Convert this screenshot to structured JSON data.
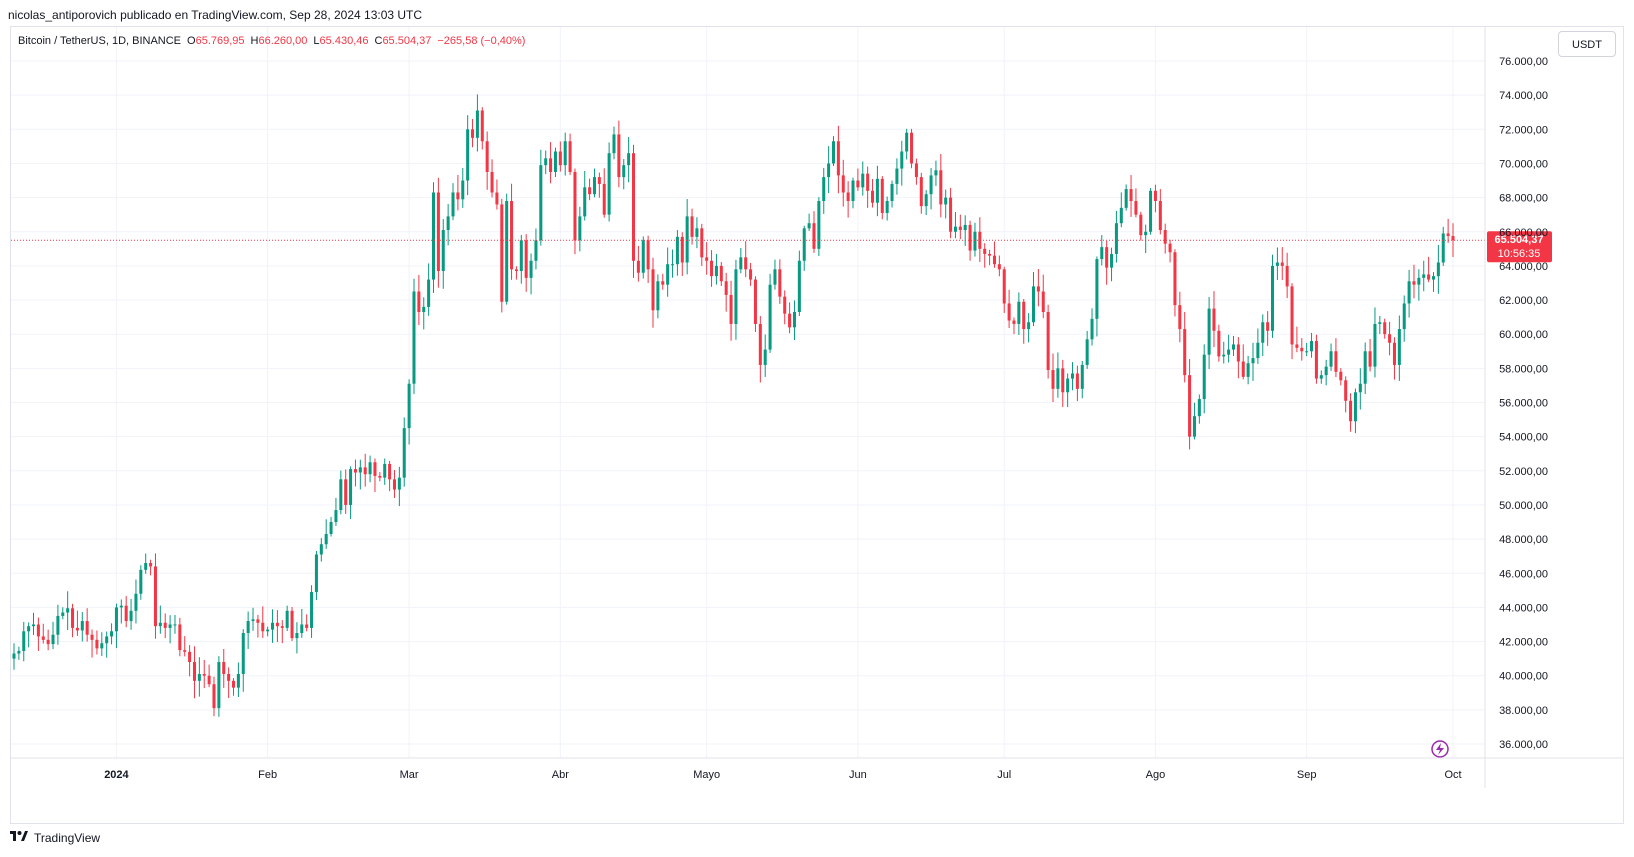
{
  "header": {
    "publisher_line": "nicolas_antiporovich publicado en TradingView.com, Sep 28, 2024 13:03 UTC"
  },
  "legend": {
    "symbol": "Bitcoin / TetherUS, 1D, BINANCE",
    "open_label": "O",
    "open_value": "65.769,95",
    "high_label": "H",
    "high_value": "66.260,00",
    "low_label": "L",
    "low_value": "65.430,46",
    "close_label": "C",
    "close_value": "65.504,37",
    "change": "−265,58 (−0,40%)"
  },
  "currency_button": "USDT",
  "last_price": {
    "label": "65.504,37",
    "countdown": "10:56:35",
    "value": 65504.37
  },
  "footer": {
    "brand": "TradingView"
  },
  "colors": {
    "up": "#089981",
    "down": "#f23645",
    "grid": "#f0f3fa",
    "axis_text": "#131722",
    "price_line": "#f23645"
  },
  "icons": {
    "replay": "lightning-icon",
    "logo": "tradingview-logo-icon"
  },
  "chart_data": {
    "type": "candlestick",
    "title": "Bitcoin / TetherUS, 1D, BINANCE",
    "grid": true,
    "ylim": [
      35000,
      77000
    ],
    "y_ticks": [
      {
        "value": 36000,
        "label": "36.000,00"
      },
      {
        "value": 38000,
        "label": "38.000,00"
      },
      {
        "value": 40000,
        "label": "40.000,00"
      },
      {
        "value": 42000,
        "label": "42.000,00"
      },
      {
        "value": 44000,
        "label": "44.000,00"
      },
      {
        "value": 46000,
        "label": "46.000,00"
      },
      {
        "value": 48000,
        "label": "48.000,00"
      },
      {
        "value": 50000,
        "label": "50.000,00"
      },
      {
        "value": 52000,
        "label": "52.000,00"
      },
      {
        "value": 54000,
        "label": "54.000,00"
      },
      {
        "value": 56000,
        "label": "56.000,00"
      },
      {
        "value": 58000,
        "label": "58.000,00"
      },
      {
        "value": 60000,
        "label": "60.000,00"
      },
      {
        "value": 62000,
        "label": "62.000,00"
      },
      {
        "value": 64000,
        "label": "64.000,00"
      },
      {
        "value": 66000,
        "label": "66.000,00"
      },
      {
        "value": 68000,
        "label": "68.000,00"
      },
      {
        "value": 70000,
        "label": "70.000,00"
      },
      {
        "value": 72000,
        "label": "72.000,00"
      },
      {
        "value": 74000,
        "label": "74.000,00"
      },
      {
        "value": 76000,
        "label": "76.000,00"
      }
    ],
    "x_ticks": [
      {
        "date": "2024-01-01",
        "label": "2024",
        "bold": true
      },
      {
        "date": "2024-02-01",
        "label": "Feb"
      },
      {
        "date": "2024-03-01",
        "label": "Mar"
      },
      {
        "date": "2024-04-01",
        "label": "Abr"
      },
      {
        "date": "2024-05-01",
        "label": "Mayo"
      },
      {
        "date": "2024-06-01",
        "label": "Jun"
      },
      {
        "date": "2024-07-01",
        "label": "Jul"
      },
      {
        "date": "2024-08-01",
        "label": "Ago"
      },
      {
        "date": "2024-09-01",
        "label": "Sep"
      },
      {
        "date": "2024-10-01",
        "label": "Oct"
      }
    ],
    "x_range": [
      "2023-12-11",
      "2024-10-02"
    ],
    "first_date": "2023-12-11",
    "closes": [
      41300,
      41450,
      42600,
      42900,
      43000,
      42300,
      42100,
      41850,
      42400,
      43500,
      43700,
      43950,
      42800,
      42650,
      43200,
      42400,
      42100,
      41600,
      41900,
      42300,
      42600,
      44000,
      44100,
      43200,
      43800,
      44800,
      46200,
      46600,
      46400,
      42900,
      43100,
      42800,
      43000,
      43000,
      41500,
      41400,
      40800,
      39700,
      40100,
      40000,
      39500,
      38100,
      40800,
      40100,
      39700,
      39300,
      40100,
      42500,
      43200,
      43300,
      43100,
      42600,
      42700,
      43100,
      42900,
      42800,
      43800,
      42200,
      42500,
      43000,
      42800,
      44900,
      47100,
      47700,
      48300,
      49000,
      49700,
      51500,
      50000,
      52100,
      51900,
      52200,
      51800,
      52500,
      51700,
      51600,
      52400,
      51500,
      50900,
      51600,
      54500,
      57100,
      62500,
      61300,
      61600,
      63200,
      68300,
      63700,
      66100,
      66900,
      68300,
      67900,
      69000,
      72000,
      71500,
      73100,
      71300,
      69500,
      68300,
      67600,
      61900,
      67800,
      63800,
      63700,
      65500,
      63300,
      64300,
      65500,
      69900,
      70300,
      69500,
      70700,
      69900,
      71300,
      69500,
      65500,
      66900,
      68600,
      68200,
      69200,
      68800,
      67000,
      70600,
      71700,
      69200,
      69900,
      70600,
      64300,
      63600,
      65500,
      63800,
      61400,
      63100,
      62900,
      64100,
      64100,
      65700,
      64200,
      66900,
      65700,
      66200,
      64500,
      64300,
      63400,
      64000,
      63100,
      62300,
      60600,
      63800,
      64500,
      63800,
      63200,
      60600,
      58200,
      59100,
      62900,
      63800,
      62200,
      61200,
      60400,
      61300,
      64300,
      66200,
      66500,
      65000,
      67800,
      69200,
      70000,
      71300,
      69300,
      68300,
      67800,
      69000,
      68600,
      69400,
      68400,
      67700,
      69100,
      67100,
      67800,
      68800,
      69700,
      70700,
      71800,
      70000,
      69200,
      67500,
      68200,
      69300,
      69600,
      67600,
      68000,
      66000,
      66300,
      66100,
      66400,
      64900,
      66000,
      65000,
      64700,
      64600,
      64100,
      63800,
      61800,
      60800,
      60600,
      61900,
      60300,
      60700,
      62800,
      62500,
      61300,
      57900,
      56800,
      58000,
      56600,
      57400,
      57700,
      56800,
      58200,
      59700,
      60900,
      64400,
      65100,
      63900,
      64700,
      66500,
      67400,
      68500,
      67800,
      67000,
      65800,
      66000,
      68400,
      67800,
      66100,
      65300,
      64800,
      61700,
      60300,
      57600,
      54000,
      55200,
      56200,
      58800,
      61500,
      60200,
      58700,
      58800,
      59100,
      59400,
      58400,
      57500,
      58300,
      58600,
      59500,
      60700,
      60200,
      64000,
      64200,
      64000,
      62800,
      59400,
      59200,
      59000,
      59000,
      59600,
      57400,
      57600,
      58100,
      59000,
      57800,
      57300,
      56100,
      54900,
      56600,
      57100,
      59000,
      58100,
      60600,
      60700,
      60000,
      59500,
      58200,
      60300,
      61800,
      63100,
      62900,
      63300,
      63500,
      63200,
      63400,
      64200,
      65900,
      65750,
      65500
    ]
  }
}
